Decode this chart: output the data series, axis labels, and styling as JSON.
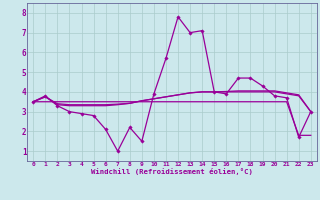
{
  "title": "",
  "xlabel": "Windchill (Refroidissement éolien,°C)",
  "background_color": "#cce8ec",
  "grid_color": "#aacccc",
  "line_color": "#990099",
  "spine_color": "#666699",
  "xlim": [
    -0.5,
    23.5
  ],
  "ylim": [
    0.5,
    8.5
  ],
  "xticks": [
    0,
    1,
    2,
    3,
    4,
    5,
    6,
    7,
    8,
    9,
    10,
    11,
    12,
    13,
    14,
    15,
    16,
    17,
    18,
    19,
    20,
    21,
    22,
    23
  ],
  "yticks": [
    1,
    2,
    3,
    4,
    5,
    6,
    7,
    8
  ],
  "series": [
    {
      "y": [
        3.5,
        3.8,
        3.3,
        3.0,
        2.9,
        2.8,
        2.1,
        1.0,
        2.2,
        1.5,
        3.9,
        5.7,
        7.8,
        7.0,
        7.1,
        4.0,
        3.9,
        4.7,
        4.7,
        4.3,
        3.8,
        3.7,
        1.7,
        3.0
      ],
      "marker": true
    },
    {
      "y": [
        3.5,
        3.75,
        3.4,
        3.35,
        3.35,
        3.35,
        3.35,
        3.38,
        3.42,
        3.55,
        3.65,
        3.75,
        3.85,
        3.95,
        4.0,
        4.0,
        4.02,
        4.05,
        4.05,
        4.05,
        4.05,
        3.95,
        3.85,
        3.0
      ],
      "marker": false
    },
    {
      "y": [
        3.5,
        3.75,
        3.35,
        3.3,
        3.3,
        3.3,
        3.3,
        3.35,
        3.42,
        3.55,
        3.65,
        3.75,
        3.85,
        3.95,
        4.0,
        4.0,
        4.0,
        4.0,
        4.0,
        4.0,
        4.0,
        3.9,
        3.8,
        3.0
      ],
      "marker": false
    },
    {
      "y": [
        3.5,
        3.5,
        3.5,
        3.5,
        3.5,
        3.5,
        3.5,
        3.5,
        3.5,
        3.5,
        3.5,
        3.5,
        3.5,
        3.5,
        3.5,
        3.5,
        3.5,
        3.5,
        3.5,
        3.5,
        3.5,
        3.5,
        1.8,
        1.8
      ],
      "marker": false
    }
  ]
}
